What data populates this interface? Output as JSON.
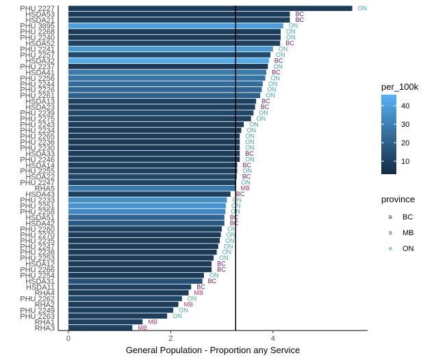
{
  "chart_data": {
    "type": "bar",
    "orientation": "horizontal",
    "xlabel": "General Population - Proportion any Service",
    "ylabel": "",
    "xlim": [
      -0.2,
      5.85
    ],
    "xticks": [
      0,
      2,
      4
    ],
    "reference_line": 3.27,
    "grid": false,
    "categories": [
      "PHU 2227",
      "HSDA53",
      "HSDA21",
      "PHU 3895",
      "PHU 2268",
      "PHU 2240",
      "HSDA52",
      "PHU 2241",
      "PHU 2257",
      "HSDA32",
      "PHU 2237",
      "HSDA41",
      "PHU 2256",
      "PHU 2244",
      "PHU 2226",
      "PHU 2261",
      "HSDA13",
      "HSDA23",
      "PHU 2239",
      "PHU 2275",
      "PHU 2243",
      "PHU 2234",
      "PHU 2265",
      "PHU 2236",
      "PHU 2230",
      "HSDA33",
      "PHU 2246",
      "HSDA14",
      "PHU 2255",
      "HSDA22",
      "PHU 2247",
      "RHA5",
      "HSDA43",
      "PHU 2233",
      "PHU 2251",
      "PHU 2258",
      "HSDA51",
      "HSDA42",
      "PHU 2260",
      "PHU 2270",
      "PHU 2235",
      "PHU 2247",
      "PHU 2238",
      "PHU 2253",
      "HSDA12",
      "PHU 2266",
      "PHU 2254",
      "HSDA31",
      "HSDA11",
      "RHA4",
      "PHU 2262",
      "RHA2",
      "PHU 2249",
      "PHU 2263",
      "RHA1",
      "RHA3"
    ],
    "values": [
      5.55,
      4.33,
      4.33,
      4.2,
      4.15,
      4.15,
      4.14,
      4.0,
      3.95,
      3.92,
      3.9,
      3.87,
      3.85,
      3.8,
      3.78,
      3.75,
      3.67,
      3.65,
      3.62,
      3.57,
      3.43,
      3.38,
      3.35,
      3.35,
      3.35,
      3.35,
      3.35,
      3.3,
      3.3,
      3.29,
      3.27,
      3.26,
      3.17,
      3.1,
      3.08,
      3.07,
      3.05,
      3.05,
      3.0,
      2.98,
      2.96,
      2.93,
      2.9,
      2.84,
      2.8,
      2.8,
      2.65,
      2.62,
      2.4,
      2.35,
      2.22,
      2.15,
      2.05,
      1.93,
      1.45,
      1.25
    ],
    "province": [
      "ON",
      "BC",
      "BC",
      "ON",
      "ON",
      "ON",
      "BC",
      "ON",
      "ON",
      "BC",
      "ON",
      "BC",
      "ON",
      "ON",
      "ON",
      "ON",
      "BC",
      "BC",
      "ON",
      "ON",
      "ON",
      "ON",
      "ON",
      "ON",
      "ON",
      "BC",
      "ON",
      "BC",
      "ON",
      "BC",
      "ON",
      "MB",
      "BC",
      "ON",
      "ON",
      "ON",
      "BC",
      "BC",
      "ON",
      "ON",
      "ON",
      "ON",
      "ON",
      "ON",
      "BC",
      "BC",
      "ON",
      "BC",
      "BC",
      "MB",
      "ON",
      "MB",
      "ON",
      "ON",
      "MB",
      "MB"
    ],
    "per_100k": [
      8,
      9,
      10,
      40,
      8,
      8,
      10,
      38,
      12,
      44,
      8,
      28,
      26,
      24,
      22,
      20,
      10,
      10,
      12,
      10,
      8,
      8,
      8,
      8,
      8,
      9,
      8,
      9,
      10,
      12,
      11,
      28,
      10,
      35,
      37,
      33,
      22,
      18,
      10,
      8,
      8,
      8,
      8,
      8,
      8,
      8,
      8,
      15,
      10,
      8,
      12,
      8,
      10,
      9,
      10,
      10
    ],
    "color_scale": {
      "title": "per_100k",
      "ticks": [
        10,
        20,
        30,
        40
      ],
      "min": 3,
      "max": 46,
      "low_color": "#132b43",
      "high_color": "#56b1f7"
    },
    "province_legend": {
      "title": "province",
      "entries": [
        {
          "label": "BC",
          "color": "#5c1a5c"
        },
        {
          "label": "MB",
          "color": "#b0356e"
        },
        {
          "label": "ON",
          "color": "#3fa6a8"
        }
      ],
      "key_glyph": "a"
    }
  }
}
